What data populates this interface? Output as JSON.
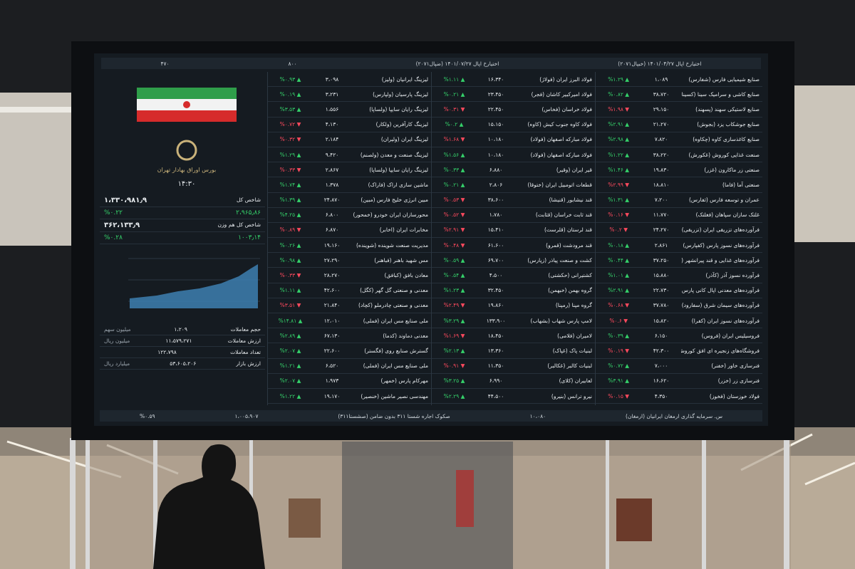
{
  "board": {
    "header": [
      "اختیارخ اپال ۱۴۰۱/۰۴/۲۷ (خبپال۲۰۷۱)",
      "اختیارخ اپال ۱۴۰۱/۰۷/۲۷ (ضپال۲۰۷۱)",
      "۸۰۰",
      "۴۷۰"
    ],
    "panel": {
      "exchange": "بورس اوراق بهادار تهران",
      "time": "۱۴:۳۰",
      "indices": [
        {
          "name": "شاخص کل",
          "value": "۱،۳۳۰،۹۸۱٫۹",
          "change": "۲،۹۶۵٫۸۶",
          "percent": "%۰.۲۲",
          "up": true
        },
        {
          "name": "شاخص کل هم وزن",
          "value": "۳۶۲،۱۳۳٫۹",
          "change": "۱۰۰۳٫۱۴",
          "percent": "%۰.۲۸",
          "up": true
        }
      ],
      "stats": [
        {
          "name": "حجم معاملات",
          "value": "۱،۲۰۹",
          "unit": "میلیون سهم"
        },
        {
          "name": "ارزش معاملات",
          "value": "۱۱،۵۷۹،۲۷۱",
          "unit": "میلیون ریال"
        },
        {
          "name": "تعداد معاملات",
          "value": "۱۲۲،۷۹۸",
          "unit": ""
        },
        {
          "name": "ارزش بازار",
          "value": "۵۳،۶۰۵،۲۰۶",
          "unit": "میلیارد ریال"
        }
      ]
    },
    "columns": [
      {
        "rows": [
          {
            "name": "لیزینگ ایرانیان (ولیز)",
            "price": "۳،۰۹۸",
            "change": "▲ %۰.۹۳",
            "up": true
          },
          {
            "name": "لیزینگ پارسیان (ولپارس)",
            "price": "۳،۲۳۱",
            "change": "▲ %۰.۱۹",
            "up": true
          },
          {
            "name": "لیزینگ رایان سایپا (ولساپا)",
            "price": "۱،۵۵۶",
            "change": "▲ %۳.۵۳",
            "up": true
          },
          {
            "name": "لیزینگ کارآفرین (ولکار)",
            "price": "۴،۱۳۰",
            "change": "▼ %۰.۷۲",
            "up": false
          },
          {
            "name": "لیزینگ ایران (ولیران)",
            "price": "۲،۱۸۴",
            "change": "▼ %۰.۳۲",
            "up": false
          },
          {
            "name": "لیزینگ صنعت و معدن (ولصنم)",
            "price": "۹،۴۲۰",
            "change": "▲ %۱.۲۹",
            "up": true
          },
          {
            "name": "لیزینگ رایان سایپا (ولساپا)",
            "price": "۲،۸۶۷",
            "change": "▼ %۰.۳۳",
            "up": false
          },
          {
            "name": "ماشین سازی اراک (فاراک)",
            "price": "۱،۳۷۸",
            "change": "▲ %۱.۷۴",
            "up": true
          },
          {
            "name": "مبین انرژی خلیج فارس (مبین)",
            "price": "۲۴،۸۷۰",
            "change": "▲ %۱.۳۹",
            "up": true
          },
          {
            "name": "محورسازان ایران خودرو (خمحور)",
            "price": "۶،۸۰۰",
            "change": "▲ %۴.۲۵",
            "up": true
          },
          {
            "name": "مخابرات ایران (اخابر)",
            "price": "۶،۸۷۰",
            "change": "▼ %۰.۸۹",
            "up": false
          },
          {
            "name": "مدیریت صنعت شوینده (شوینده)",
            "price": "۱۹،۱۶۰",
            "change": "▲ %۰.۲۶",
            "up": true
          },
          {
            "name": "مس شهید باهنر (فباهنر)",
            "price": "۲۷،۲۹۰",
            "change": "▲ %۰.۹۸",
            "up": true
          },
          {
            "name": "معادن بافق (کبافق)",
            "price": "۲۸،۲۷۰",
            "change": "▼ %۰.۳۳",
            "up": false
          },
          {
            "name": "معدنی و صنعتی گل گهر (کگل)",
            "price": "۴۲،۶۰۰",
            "change": "▲ %۱.۱۱",
            "up": true
          },
          {
            "name": "معدنی و صنعتی چادرملو (کچاد)",
            "price": "۲۱،۸۴۰",
            "change": "▼ %۳.۵۱",
            "up": false
          },
          {
            "name": "ملی صنایع مس ایران (فملی)",
            "price": "۱۲،۰۱۰",
            "change": "▲ %۱۴.۸۱",
            "up": true
          },
          {
            "name": "معدنی دماوند (کدما)",
            "price": "۶۷،۱۳۰",
            "change": "▲ %۲.۸۹",
            "up": true
          },
          {
            "name": "گسترش صنایع روی (فگستر)",
            "price": "۲۲،۶۰۰",
            "change": "▲ %۲.۰۷",
            "up": true
          },
          {
            "name": "ملی صنایع مس ایران (فملی)",
            "price": "۶،۵۲۰",
            "change": "▲ %۱.۲۱",
            "up": true
          },
          {
            "name": "مهرکام پارس (خمهر)",
            "price": "۱،۹۷۳",
            "change": "▲ %۲.۰۷",
            "up": true
          },
          {
            "name": "مهندسی نصیر ماشین (خنصیر)",
            "price": "۱۹،۱۷۰",
            "change": "▲ %۱.۲۲",
            "up": true
          }
        ]
      },
      {
        "rows": [
          {
            "name": "فولاد البرز ایران (فولاژ)",
            "price": "۱۶،۳۴۰",
            "change": "▲ %۱.۱۱",
            "up": true
          },
          {
            "name": "فولاد امیرکبیر کاشان (فجر)",
            "price": "۲۳،۴۵۰",
            "change": "▲ %۰.۲۱",
            "up": true
          },
          {
            "name": "فولاد خراسان (فخاس)",
            "price": "۲۲،۴۵۰",
            "change": "▼ %۰.۳۱",
            "up": false
          },
          {
            "name": "فولاد کاوه جنوب کیش (کاوه)",
            "price": "۱۵،۱۵۰",
            "change": "▲ %۰.۲",
            "up": true
          },
          {
            "name": "فولاد مبارکه اصفهان (فولاد)",
            "price": "۱۰،۱۸۰",
            "change": "▼ %۱.۶۸",
            "up": false
          },
          {
            "name": "فولاد مبارکه اصفهان (فولاد)",
            "price": "۱۰،۱۸۰",
            "change": "▲ %۱.۵۶",
            "up": true
          },
          {
            "name": "قیر ایران (وقیر)",
            "price": "۶،۸۸۰",
            "change": "▲ %۰.۳۳",
            "up": true
          },
          {
            "name": "قطعات اتومبیل ایران (ختوقا)",
            "price": "۲،۸۰۶",
            "change": "▲ %۰.۲۱",
            "up": true
          },
          {
            "name": "قند نیشابور (قنیشا)",
            "price": "۳۸،۶۰۰",
            "change": "▼ %۰.۵۳",
            "up": false
          },
          {
            "name": "قند ثابت خراسان (قثابت)",
            "price": "۱،۷۸۰",
            "change": "▼ %۰.۵۲",
            "up": false
          },
          {
            "name": "قند لرستان (قلرست)",
            "price": "۱۵،۴۱۰",
            "change": "▼ %۲.۹۱",
            "up": false
          },
          {
            "name": "قند مرودشت (قمرو)",
            "price": "۶۱،۶۰۰",
            "change": "▼ %۰.۴۸",
            "up": false
          },
          {
            "name": "کشت و صنعت پیاذر (زپارس)",
            "price": "۶۹،۷۰۰",
            "change": "▲ %۰.۵۹",
            "up": true
          },
          {
            "name": "کشتیرانی (حکشتی)",
            "price": "۴،۵۰۰",
            "change": "▲ %۰.۵۴",
            "up": true
          },
          {
            "name": "گروه بهمن (خبهمن)",
            "price": "۳۲،۴۵۰",
            "change": "▲ %۱.۲۳",
            "up": true
          },
          {
            "name": "گروه مپنا (رمپنا)",
            "price": "۱۹،۸۶۰",
            "change": "▼ %۲.۴۹",
            "up": false
          },
          {
            "name": "لامپ پارس شهاب (بشهاب)",
            "price": "۱۳۳،۹۰۰",
            "change": "▲ %۳.۲۹",
            "up": true
          },
          {
            "name": "لامیران (فلامی)",
            "price": "۱۸،۴۵۰",
            "change": "▼ %۱.۶۹",
            "up": false
          },
          {
            "name": "لبنیات پاک (غپاک)",
            "price": "۱۳،۳۶۰",
            "change": "▲ %۲.۱۳",
            "up": true
          },
          {
            "name": "لبنیات کالبر (غکالبر)",
            "price": "۱۱،۳۵۰",
            "change": "▼ %۰.۹۱",
            "up": false
          },
          {
            "name": "لعابیران (کلای)",
            "price": "۶،۹۹۰",
            "change": "▲ %۳.۲۵",
            "up": true
          },
          {
            "name": "نیرو ترانس (بنیرو)",
            "price": "۴۴،۵۰۰",
            "change": "▲ %۲.۲۹",
            "up": true
          }
        ]
      },
      {
        "rows": [
          {
            "name": "صنایع شیمیایی فارس (شفارس)",
            "price": "۱،۰۸۹",
            "change": "▲ %۱.۲۹",
            "up": true
          },
          {
            "name": "صنایع کاشی و سرامیک سینا (کسینا)",
            "price": "۳۸،۷۲۰",
            "change": "▲ %۰.۸۲",
            "up": true
          },
          {
            "name": "صنایع لاستیکی سهند (پسهند)",
            "price": "۲۹،۱۵۰",
            "change": "▼ %۱.۹۸",
            "up": false
          },
          {
            "name": "صنایع جوشکاب یزد (بجوش)",
            "price": "۲۱،۲۷۰",
            "change": "▲ %۲.۹۱",
            "up": true
          },
          {
            "name": "صنایع کاغذسازی کاوه (چکاوه)",
            "price": "۷،۸۲۰",
            "change": "▲ %۲.۹۸",
            "up": true
          },
          {
            "name": "صنعت غذایی کوروش (غکورش)",
            "price": "۳۸،۲۲۰",
            "change": "▲ %۱.۲۲",
            "up": true
          },
          {
            "name": "صنعتی زر ماکارون (غزر)",
            "price": "۱۹،۸۳۰",
            "change": "▲ %۱.۴۶",
            "up": true
          },
          {
            "name": "صنعتی آما (فاما)",
            "price": "۱۸،۸۱۰",
            "change": "▼ %۲.۹۹",
            "up": false
          },
          {
            "name": "عمران و توسعه فارس (ثفارس)",
            "price": "۷،۲۰۰",
            "change": "▲ %۱.۳۱",
            "up": true
          },
          {
            "name": "غلتک سازان سپاهان (فغلتک)",
            "price": "۱۱،۷۷۰",
            "change": "▼ %۰.۱۶",
            "up": false
          },
          {
            "name": "فرآورده‌های تزریقی ایران (تزریقی)",
            "price": "۲۴،۲۷۰",
            "change": "▼ %۰.۲",
            "up": false
          },
          {
            "name": "فرآورده‌های نسوز پارس (کفپارس)",
            "price": "۲،۸۶۱",
            "change": "▲ %۰.۱۸",
            "up": true
          },
          {
            "name": "فرآورده‌های غذایی و قند پیرانشهر (قپیرا)",
            "price": "۳۷،۲۵۰",
            "change": "▲ %۰.۴۴",
            "up": true
          },
          {
            "name": "فرآورده نسوز آذر (کآذر)",
            "price": "۱۵،۸۸۰",
            "change": "▲ %۱.۰۱",
            "up": true
          },
          {
            "name": "فرآورده‌های معدنی اپال کانی پارس (اپال)",
            "price": "۲۲،۷۳۰",
            "change": "▲ %۲.۹۱",
            "up": true
          },
          {
            "name": "فرآورده‌های سیمان شرق (سفارود)",
            "price": "۳۷،۷۸۰",
            "change": "▼ %۰.۶۸",
            "up": false
          },
          {
            "name": "فرآورده‌های نسوز ایران (کفرا)",
            "price": "۱۵،۸۲۰",
            "change": "▼ %۰.۶",
            "up": false
          },
          {
            "name": "فروسیلیس ایران (فروس)",
            "price": "۶،۱۵۰",
            "change": "▲ %۰.۳۹",
            "up": true
          },
          {
            "name": "فروشگاه‌های زنجیره ای افق کوروش (افق)",
            "price": "۴۲،۳۰۰",
            "change": "▼ %۰.۱۹",
            "up": false
          },
          {
            "name": "فنرسازی خاور (خفنر)",
            "price": "۷،۰۰۰",
            "change": "▲ %۰.۷۲",
            "up": true
          },
          {
            "name": "فنرسازی زر (خزر)",
            "price": "۱۶،۶۲۰",
            "change": "▲ %۳.۹۱",
            "up": true
          },
          {
            "name": "فولاد خوزستان (فخوز)",
            "price": "۴،۳۵۰",
            "change": "▼ %۰.۱۵",
            "up": false
          }
        ]
      }
    ],
    "ticker": [
      "س. سرمایه گذاری ارمغان ایرانیان (ارمغان)",
      "۱۰،۰۸۰",
      "صکوک اجاره شستا ۳۱۱ بدون ضامن (صشستا۳۱۱)",
      "۱،۰۰۵،۹۰۷",
      "%۰.۵۹"
    ]
  }
}
